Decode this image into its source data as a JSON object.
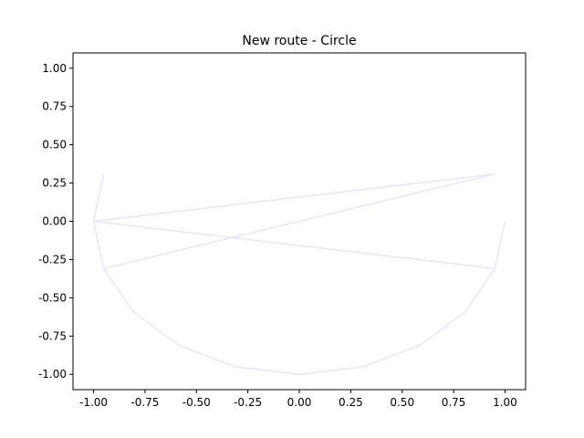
{
  "chart_data": {
    "type": "line",
    "title": "New route - Circle",
    "xlabel": "",
    "ylabel": "",
    "xlim": [
      -1.1,
      1.1
    ],
    "ylim": [
      -1.1,
      1.1
    ],
    "grid": false,
    "x_ticks": [
      "-1.00",
      "-0.75",
      "-0.50",
      "-0.25",
      "0.00",
      "0.25",
      "0.50",
      "0.75",
      "1.00"
    ],
    "y_ticks": [
      "1.00",
      "0.75",
      "0.50",
      "0.25",
      "0.00",
      "-0.25",
      "-0.50",
      "-0.75",
      "-1.00"
    ],
    "series": [
      {
        "color": "#e6e6fa",
        "x": [
          1.0,
          0.951,
          0.809,
          0.588,
          0.309,
          0.0,
          -0.309,
          -0.588,
          -0.809,
          -0.951,
          -1.0,
          0.951,
          -0.951,
          -0.809,
          -0.588,
          -0.309,
          0.0,
          0.309,
          0.588,
          0.809,
          0.951,
          -1.0,
          -0.951
        ],
        "y": [
          0.0,
          -0.309,
          -0.588,
          -0.809,
          -0.951,
          -1.0,
          -0.951,
          -0.809,
          -0.588,
          -0.309,
          0.0,
          0.309,
          -0.309,
          -0.588,
          -0.809,
          -0.951,
          -1.0,
          -0.951,
          -0.809,
          -0.588,
          -0.309,
          0.0,
          0.309
        ]
      }
    ]
  }
}
